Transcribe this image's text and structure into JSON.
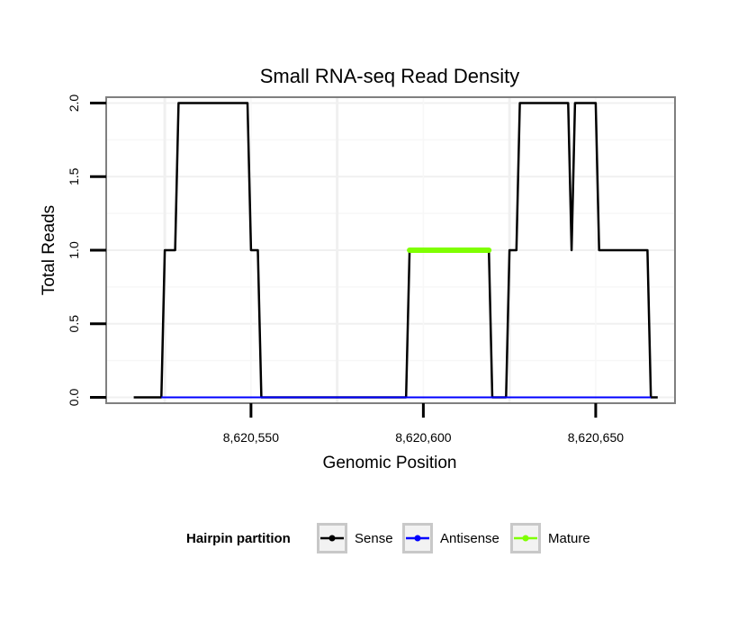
{
  "chart_data": {
    "type": "line",
    "title": "Small RNA-seq Read Density",
    "xlabel": "Genomic Position",
    "ylabel": "Total Reads",
    "xlim": [
      8620508,
      8620673
    ],
    "ylim": [
      -0.04,
      2.04
    ],
    "grid": true,
    "x_ticks": [
      {
        "value": 8620550,
        "label": "8,620,550"
      },
      {
        "value": 8620600,
        "label": "8,620,600"
      },
      {
        "value": 8620650,
        "label": "8,620,650"
      }
    ],
    "y_ticks": [
      {
        "value": 0,
        "label": "0.0"
      },
      {
        "value": 0.5,
        "label": "0.5"
      },
      {
        "value": 1,
        "label": "1.0"
      },
      {
        "value": 1.5,
        "label": "1.5"
      },
      {
        "value": 2,
        "label": "2.0"
      }
    ],
    "legend": {
      "title": "Hairpin partition",
      "position": "bottom"
    },
    "series": [
      {
        "name": "Sense",
        "color": "#000000",
        "x": [
          8620516,
          8620524,
          8620525,
          8620528,
          8620529,
          8620549,
          8620550,
          8620552,
          8620553,
          8620595,
          8620596,
          8620619,
          8620620,
          8620624,
          8620625,
          8620627,
          8620628,
          8620642,
          8620643,
          8620644,
          8620650,
          8620651,
          8620665,
          8620666,
          8620668
        ],
        "y": [
          0,
          0,
          1,
          1,
          2,
          2,
          1,
          1,
          0,
          0,
          1,
          1,
          0,
          0,
          1,
          1,
          2,
          2,
          1,
          2,
          2,
          1,
          1,
          0,
          0
        ]
      },
      {
        "name": "Antisense",
        "color": "#0000ff",
        "x": [
          8620524,
          8620666
        ],
        "y": [
          0,
          0
        ]
      },
      {
        "name": "Mature",
        "color": "#7fff00",
        "x": [
          8620596,
          8620619
        ],
        "y": [
          1,
          1
        ]
      }
    ]
  }
}
